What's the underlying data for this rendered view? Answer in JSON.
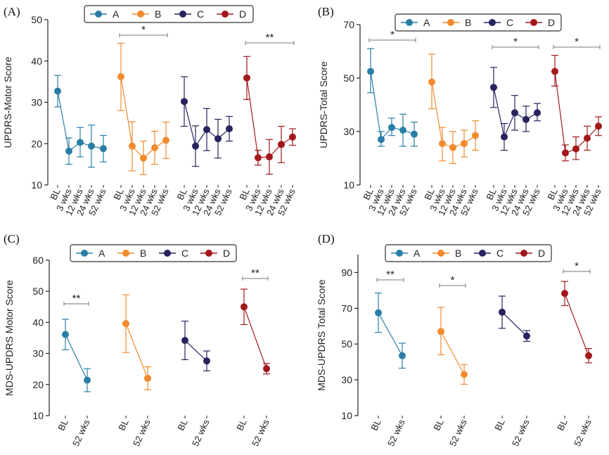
{
  "colors": {
    "A": "#2a7ea6",
    "B": "#f28a2e",
    "C": "#26235f",
    "D": "#a3181c"
  },
  "chart_data": [
    {
      "type": "line",
      "panel": "(A)",
      "ylabel": "UPDRS-Motor Score",
      "ylim": [
        10,
        50
      ],
      "yticks": [
        10,
        20,
        30,
        40,
        50
      ],
      "categories": [
        "BL",
        "3 wks",
        "12 wks",
        "24 wks",
        "52 wks"
      ],
      "legend": [
        "A",
        "B",
        "C",
        "D"
      ],
      "series": [
        {
          "name": "A",
          "values": [
            32.7,
            18.2,
            20.3,
            19.4,
            18.8
          ],
          "err_low": [
            28.9,
            15.0,
            16.8,
            14.3,
            15.6
          ],
          "err_high": [
            36.5,
            21.4,
            23.9,
            24.5,
            22.0
          ]
        },
        {
          "name": "B",
          "values": [
            36.2,
            19.4,
            16.5,
            19.0,
            20.8
          ],
          "err_low": [
            28.0,
            13.4,
            12.5,
            15.0,
            16.4
          ],
          "err_high": [
            44.3,
            25.3,
            20.6,
            23.0,
            25.2
          ]
        },
        {
          "name": "C",
          "values": [
            30.2,
            19.4,
            23.4,
            21.2,
            23.6
          ],
          "err_low": [
            24.2,
            14.5,
            18.3,
            16.5,
            20.6
          ],
          "err_high": [
            36.2,
            24.3,
            28.5,
            25.9,
            26.6
          ]
        },
        {
          "name": "D",
          "values": [
            35.9,
            16.6,
            16.8,
            19.8,
            21.6
          ],
          "err_low": [
            30.7,
            14.8,
            12.6,
            15.4,
            19.6
          ],
          "err_high": [
            41.1,
            18.4,
            21.0,
            24.2,
            23.6
          ]
        }
      ],
      "annotations": [
        {
          "group": "B",
          "label": "*"
        },
        {
          "group": "D",
          "label": "**"
        }
      ]
    },
    {
      "type": "line",
      "panel": "(B)",
      "ylabel": "UPDRS-Total Score",
      "ylim": [
        10,
        70
      ],
      "yticks": [
        10,
        30,
        50,
        70
      ],
      "categories": [
        "BL",
        "3 wks",
        "12 wks",
        "24 wks",
        "52 wks"
      ],
      "legend": [
        "A",
        "B",
        "C",
        "D"
      ],
      "series": [
        {
          "name": "A",
          "values": [
            52.5,
            27.0,
            31.5,
            30.5,
            29.0
          ],
          "err_low": [
            44.5,
            24.5,
            28.5,
            24.5,
            24.5
          ],
          "err_high": [
            61.0,
            30.0,
            35.0,
            36.5,
            33.5
          ]
        },
        {
          "name": "B",
          "values": [
            48.5,
            25.5,
            24.0,
            25.5,
            28.5
          ],
          "err_low": [
            38.5,
            19.0,
            18.0,
            20.5,
            23.0
          ],
          "err_high": [
            59.0,
            31.5,
            30.0,
            30.5,
            34.0
          ]
        },
        {
          "name": "C",
          "values": [
            46.5,
            28.0,
            37.0,
            34.5,
            37.0
          ],
          "err_low": [
            39.0,
            23.0,
            30.5,
            30.0,
            34.0
          ],
          "err_high": [
            54.0,
            33.0,
            43.5,
            39.5,
            40.5
          ]
        },
        {
          "name": "D",
          "values": [
            52.5,
            22.0,
            23.5,
            27.5,
            32.0
          ],
          "err_low": [
            47.0,
            19.0,
            19.5,
            23.0,
            28.5
          ],
          "err_high": [
            58.5,
            25.0,
            28.0,
            32.0,
            35.5
          ]
        }
      ],
      "annotations": [
        {
          "group": "A",
          "label": "*"
        },
        {
          "group": "C",
          "label": "*"
        },
        {
          "group": "D",
          "label": "*"
        }
      ]
    },
    {
      "type": "line",
      "panel": "(C)",
      "ylabel": "MDS-UPDRS Motor Score",
      "ylim": [
        10,
        60
      ],
      "yticks": [
        10,
        20,
        30,
        40,
        50,
        60
      ],
      "categories": [
        "BL",
        "52 wks"
      ],
      "legend": [
        "A",
        "B",
        "C",
        "D"
      ],
      "series": [
        {
          "name": "A",
          "values": [
            36.1,
            21.4
          ],
          "err_low": [
            31.2,
            17.7
          ],
          "err_high": [
            41.0,
            25.1
          ]
        },
        {
          "name": "B",
          "values": [
            39.6,
            22.0
          ],
          "err_low": [
            30.3,
            18.3
          ],
          "err_high": [
            48.9,
            25.7
          ]
        },
        {
          "name": "C",
          "values": [
            34.2,
            27.6
          ],
          "err_low": [
            28.0,
            24.4
          ],
          "err_high": [
            40.4,
            30.8
          ]
        },
        {
          "name": "D",
          "values": [
            45.0,
            25.1
          ],
          "err_low": [
            39.3,
            23.4
          ],
          "err_high": [
            50.7,
            26.8
          ]
        }
      ],
      "annotations": [
        {
          "group": "A",
          "label": "**"
        },
        {
          "group": "D",
          "label": "**"
        }
      ]
    },
    {
      "type": "line",
      "panel": "(D)",
      "ylabel": "MDS-UPDRS Total Score",
      "ylim": [
        10,
        100
      ],
      "yticks": [
        10,
        30,
        50,
        70,
        90
      ],
      "categories": [
        "BL",
        "52 wks"
      ],
      "legend": [
        "A",
        "B",
        "C",
        "D"
      ],
      "series": [
        {
          "name": "A",
          "values": [
            67.5,
            43.5
          ],
          "err_low": [
            56.5,
            36.5
          ],
          "err_high": [
            78.5,
            50.5
          ]
        },
        {
          "name": "B",
          "values": [
            57.0,
            33.0
          ],
          "err_low": [
            44.0,
            27.5
          ],
          "err_high": [
            70.5,
            38.5
          ]
        },
        {
          "name": "C",
          "values": [
            67.8,
            54.5
          ],
          "err_low": [
            58.8,
            51.5
          ],
          "err_high": [
            76.8,
            57.5
          ]
        },
        {
          "name": "D",
          "values": [
            78.3,
            43.5
          ],
          "err_low": [
            71.5,
            39.5
          ],
          "err_high": [
            85.0,
            47.5
          ]
        }
      ],
      "annotations": [
        {
          "group": "A",
          "label": "**"
        },
        {
          "group": "B",
          "label": "*"
        },
        {
          "group": "D",
          "label": "*"
        }
      ]
    }
  ]
}
